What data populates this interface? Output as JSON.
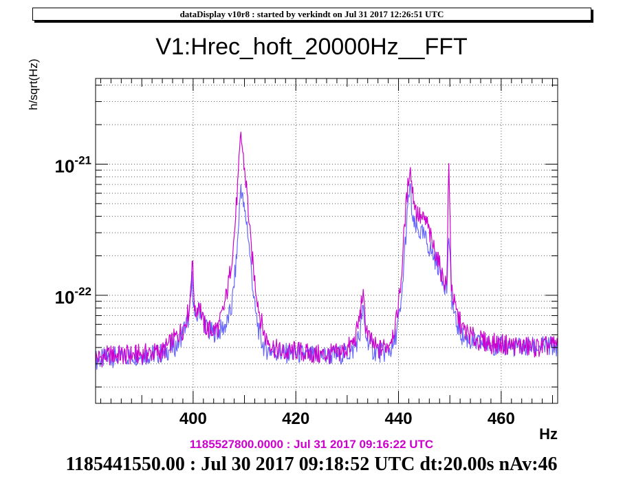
{
  "header": {
    "text": "dataDisplay v10r8 : started by verkindt on Jul 31 2017 12:26:51 UTC"
  },
  "chart_data": {
    "type": "line",
    "title": "V1:Hrec_hoft_20000Hz__FFT",
    "xlabel": "Hz",
    "ylabel": "h/sqrt(Hz)",
    "xlim": [
      381,
      471
    ],
    "ylim": [
      1.5e-23,
      4.5e-21
    ],
    "yscale": "log",
    "grid": true,
    "x_ticks": [
      400,
      420,
      440,
      460
    ],
    "y_tick_labels": [
      {
        "value": 1e-21,
        "mantissa": "10",
        "exponent": "-21"
      },
      {
        "value": 1e-22,
        "mantissa": "10",
        "exponent": "-22"
      }
    ],
    "series": [
      {
        "color": "#cc00cc",
        "points": [
          [
            381,
            3.3e-23
          ],
          [
            384,
            3.5e-23
          ],
          [
            388,
            3.5e-23
          ],
          [
            391,
            3.6e-23
          ],
          [
            394,
            3.7e-23
          ],
          [
            396,
            4.5e-23
          ],
          [
            398,
            5.5e-23
          ],
          [
            399.3,
            8e-23
          ],
          [
            399.8,
            1.9e-22
          ],
          [
            400.4,
            7e-23
          ],
          [
            401.2,
            9e-23
          ],
          [
            402,
            6e-23
          ],
          [
            403,
            5.5e-23
          ],
          [
            404,
            5.4e-23
          ],
          [
            405,
            5.8e-23
          ],
          [
            406,
            8e-23
          ],
          [
            407,
            1.3e-22
          ],
          [
            408,
            2.8e-22
          ],
          [
            408.8,
            8e-22
          ],
          [
            409.3,
            1.7e-21
          ],
          [
            409.9,
            1e-21
          ],
          [
            410.5,
            6e-22
          ],
          [
            411.2,
            2.5e-22
          ],
          [
            412,
            1.3e-22
          ],
          [
            413,
            7e-23
          ],
          [
            414,
            4.8e-23
          ],
          [
            416,
            3.9e-23
          ],
          [
            418,
            3.6e-23
          ],
          [
            420,
            3.8e-23
          ],
          [
            422,
            3.6e-23
          ],
          [
            425,
            3.5e-23
          ],
          [
            428,
            3.6e-23
          ],
          [
            430,
            3.9e-23
          ],
          [
            431.5,
            4.5e-23
          ],
          [
            432.5,
            7e-23
          ],
          [
            433,
            1.05e-22
          ],
          [
            433.6,
            6e-23
          ],
          [
            434.5,
            4.5e-23
          ],
          [
            436,
            3.8e-23
          ],
          [
            438,
            4.2e-23
          ],
          [
            439.5,
            6e-23
          ],
          [
            440.5,
            1.3e-22
          ],
          [
            441.3,
            4e-22
          ],
          [
            442.2,
            9.8e-22
          ],
          [
            442.8,
            6e-22
          ],
          [
            443.5,
            4.3e-22
          ],
          [
            444.5,
            3.8e-22
          ],
          [
            445.5,
            3.6e-22
          ],
          [
            446.5,
            2.5e-22
          ],
          [
            447.5,
            2e-22
          ],
          [
            448.5,
            1.4e-22
          ],
          [
            449.4,
            1.2e-22
          ],
          [
            449.8,
            1e-21
          ],
          [
            450.3,
            1.2e-22
          ],
          [
            451,
            8e-23
          ],
          [
            452.5,
            5.5e-23
          ],
          [
            455,
            4.6e-23
          ],
          [
            458,
            4.3e-23
          ],
          [
            461,
            4.2e-23
          ],
          [
            464,
            4.1e-23
          ],
          [
            467,
            4e-23
          ],
          [
            471,
            4.2e-23
          ]
        ]
      },
      {
        "color": "#6666ff",
        "points": [
          [
            381,
            3.2e-23
          ],
          [
            385,
            3.4e-23
          ],
          [
            390,
            3.5e-23
          ],
          [
            394,
            3.6e-23
          ],
          [
            397,
            4.2e-23
          ],
          [
            399.3,
            7e-23
          ],
          [
            399.8,
            1.3e-22
          ],
          [
            400.4,
            6e-23
          ],
          [
            401.2,
            8e-23
          ],
          [
            403,
            5.2e-23
          ],
          [
            405,
            5.3e-23
          ],
          [
            406.5,
            6e-23
          ],
          [
            407.5,
            8e-23
          ],
          [
            408.5,
            2e-22
          ],
          [
            409.3,
            7e-22
          ],
          [
            409.9,
            4.5e-22
          ],
          [
            410.5,
            3.5e-22
          ],
          [
            411.3,
            1.6e-22
          ],
          [
            412,
            8e-23
          ],
          [
            413,
            4.8e-23
          ],
          [
            414,
            3.9e-23
          ],
          [
            417,
            3.6e-23
          ],
          [
            420,
            3.6e-23
          ],
          [
            424,
            3.4e-23
          ],
          [
            428,
            3.5e-23
          ],
          [
            431,
            3.7e-23
          ],
          [
            432.5,
            5e-23
          ],
          [
            433,
            8e-23
          ],
          [
            433.6,
            5e-23
          ],
          [
            435,
            3.8e-23
          ],
          [
            437,
            3.6e-23
          ],
          [
            439,
            4e-23
          ],
          [
            440.5,
            8e-23
          ],
          [
            441.3,
            2.5e-22
          ],
          [
            442.2,
            7e-22
          ],
          [
            442.8,
            3.5e-22
          ],
          [
            443.5,
            3.2e-22
          ],
          [
            445,
            2.8e-22
          ],
          [
            446.5,
            2.1e-22
          ],
          [
            448,
            1.6e-22
          ],
          [
            449.4,
            1.1e-22
          ],
          [
            449.8,
            3e-22
          ],
          [
            450.3,
            1e-22
          ],
          [
            451,
            6.5e-23
          ],
          [
            452.5,
            4.8e-23
          ],
          [
            455,
            4.3e-23
          ],
          [
            460,
            4.1e-23
          ],
          [
            465,
            4e-23
          ],
          [
            471,
            4.1e-23
          ]
        ]
      }
    ]
  },
  "reference_stamp": "1185527800.0000 : Jul 31 2017 09:16:22 UTC",
  "footer_stamp": "1185441550.00 : Jul 30 2017 09:18:52 UTC dt:20.00s nAv:46"
}
